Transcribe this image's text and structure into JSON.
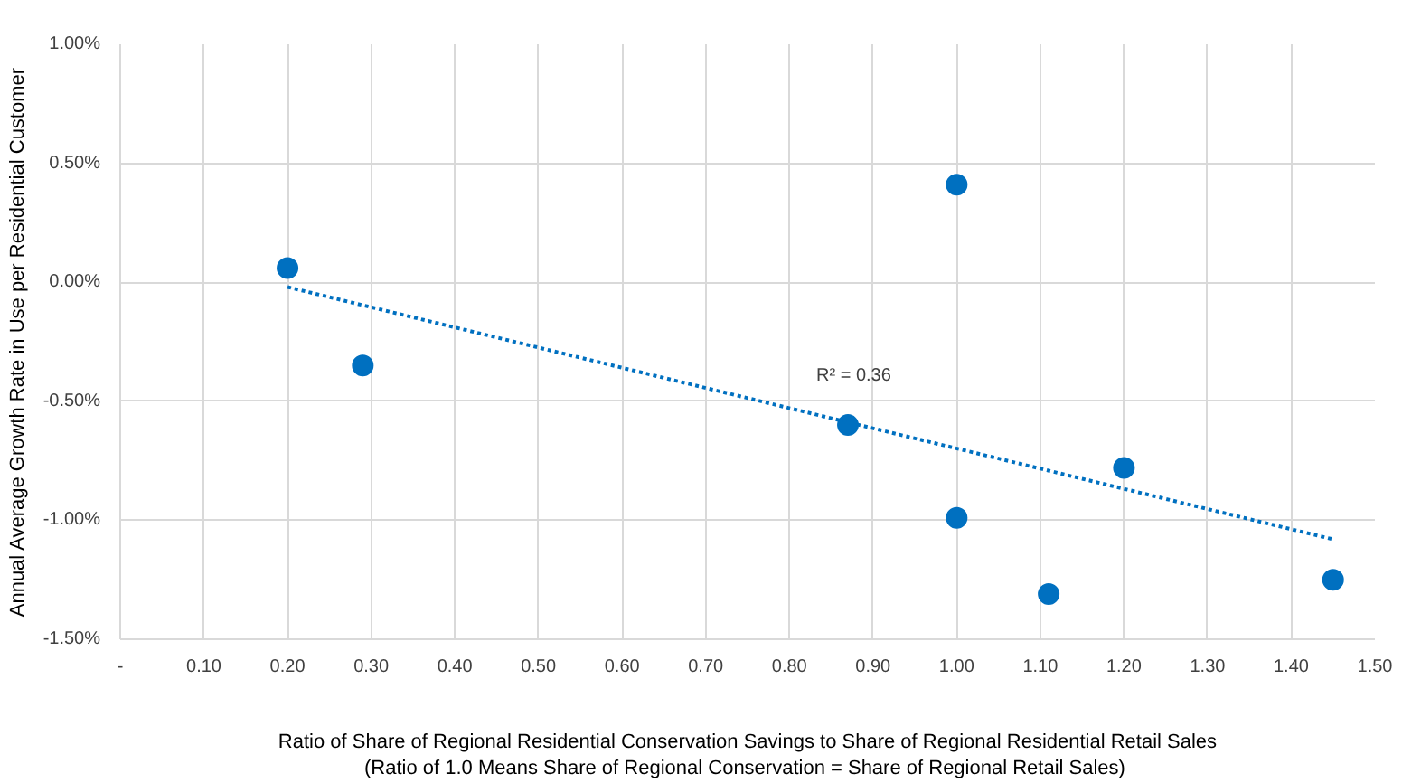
{
  "chart_data": {
    "type": "scatter",
    "xlabel": "Ratio of Share of Regional Residential Conservation Savings to Share of Regional Residential Retail Sales\n(Ratio of 1.0  Means Share of Regional Conservation = Share of Regional Retail Sales)",
    "ylabel": "Annual Average Growth Rate in Use per Residential Customer",
    "series": [
      {
        "color": "#0070c0",
        "marker": "circle",
        "x": [
          0.2,
          0.29,
          0.87,
          1.0,
          1.0,
          1.11,
          1.2,
          1.45
        ],
        "values": [
          0.06,
          -0.35,
          -0.6,
          0.41,
          -0.99,
          -1.31,
          -0.78,
          -1.25
        ]
      },
      {
        "type": "line",
        "color": "#0070c0",
        "marker": "none",
        "line_style": "dotted",
        "x": [
          0.2,
          1.45
        ],
        "values": [
          -0.02,
          -1.08
        ]
      }
    ],
    "annotations": [
      "R² = 0.36"
    ],
    "xlim": [
      0,
      1.5
    ],
    "xticks": [
      {
        "value": 0,
        "label": "-"
      },
      {
        "value": 0.1,
        "label": "0.10"
      },
      {
        "value": 0.2,
        "label": "0.20"
      },
      {
        "value": 0.3,
        "label": "0.30"
      },
      {
        "value": 0.4,
        "label": "0.40"
      },
      {
        "value": 0.5,
        "label": "0.50"
      },
      {
        "value": 0.6,
        "label": "0.60"
      },
      {
        "value": 0.7,
        "label": "0.70"
      },
      {
        "value": 0.8,
        "label": "0.80"
      },
      {
        "value": 0.9,
        "label": "0.90"
      },
      {
        "value": 1.0,
        "label": "1.00"
      },
      {
        "value": 1.1,
        "label": "1.10"
      },
      {
        "value": 1.2,
        "label": "1.20"
      },
      {
        "value": 1.3,
        "label": "1.30"
      },
      {
        "value": 1.4,
        "label": "1.40"
      },
      {
        "value": 1.5,
        "label": "1.50"
      }
    ],
    "ylim": [
      -1.5,
      1.0
    ],
    "yticks": [
      {
        "value": -1.5,
        "label": "-1.50%"
      },
      {
        "value": -1.0,
        "label": "-1.00%"
      },
      {
        "value": -0.5,
        "label": "-0.50%"
      },
      {
        "value": 0.0,
        "label": "0.00%"
      },
      {
        "value": 0.5,
        "label": "0.50%"
      },
      {
        "value": 1.0,
        "label": "1.00%"
      }
    ],
    "grid": true
  }
}
